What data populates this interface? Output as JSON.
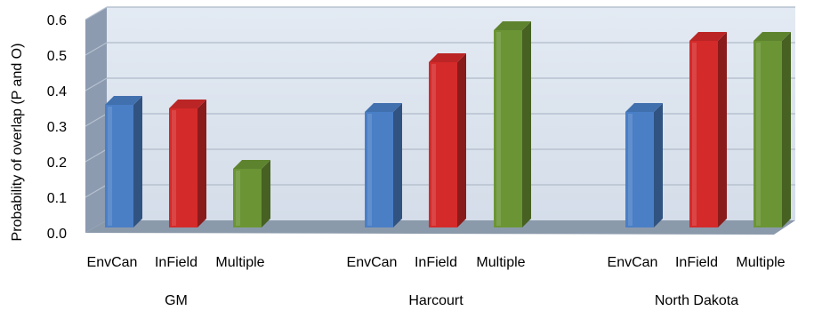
{
  "chart_data": {
    "type": "bar",
    "ylabel": "Probability of overlap (P and O)",
    "ylim": [
      0,
      0.6
    ],
    "yticks": [
      "0.0",
      "0.1",
      "0.2",
      "0.3",
      "0.4",
      "0.5",
      "0.6"
    ],
    "grid": true,
    "groups": [
      {
        "name": "GM",
        "categories": [
          "EnvCan",
          "InField",
          "Multiple"
        ],
        "values": [
          0.35,
          0.34,
          0.17
        ]
      },
      {
        "name": "Harcourt",
        "categories": [
          "EnvCan",
          "InField",
          "Multiple"
        ],
        "values": [
          0.33,
          0.47,
          0.56
        ]
      },
      {
        "name": "North Dakota",
        "categories": [
          "EnvCan",
          "InField",
          "Multiple"
        ],
        "values": [
          0.33,
          0.53,
          0.53
        ]
      }
    ],
    "colors": {
      "EnvCan": "#4a7fc6",
      "InField": "#d42a2a",
      "Multiple": "#6b9535",
      "plot_background": "#dbe4f0",
      "floor": "#8b9aab",
      "wall": "#8c9bb0"
    }
  }
}
